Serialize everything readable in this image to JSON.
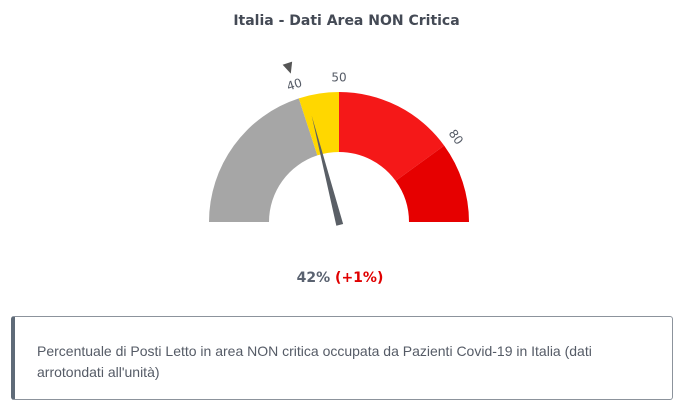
{
  "chart_data": {
    "type": "gauge",
    "title": "Italia - Dati Area NON Critica",
    "range": [
      0,
      100
    ],
    "bands": [
      {
        "from": 0,
        "to": 40,
        "color": "#a6a6a6"
      },
      {
        "from": 40,
        "to": 50,
        "color": "#ffd700"
      },
      {
        "from": 50,
        "to": 80,
        "color": "#f51818"
      },
      {
        "from": 80,
        "to": 100,
        "color": "#e60000"
      }
    ],
    "tick_labels": [
      {
        "value": 40,
        "label": "40"
      },
      {
        "value": 50,
        "label": "50"
      },
      {
        "value": 80,
        "label": "80"
      }
    ],
    "marker_value": 40,
    "value": 42,
    "value_label": "42%",
    "delta_label": "(+1%)",
    "needle_color": "#5a5f66",
    "marker_color": "#555555"
  },
  "note": {
    "text": "Percentuale di Posti Letto in area NON critica occupata da Pazienti Covid-19 in Italia (dati arrotondati all'unità)"
  }
}
